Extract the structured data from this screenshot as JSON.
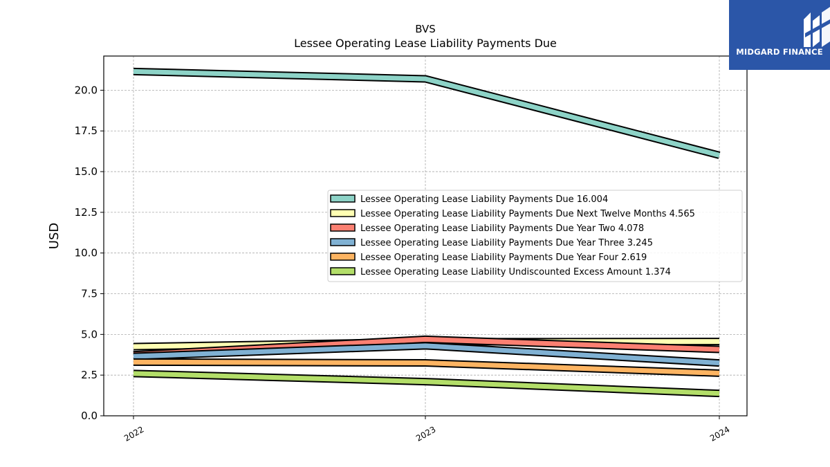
{
  "logo": {
    "name": "MIDGARD FINANCE",
    "icon": "midgard-m-logo-icon",
    "background": "#2b56a8"
  },
  "chart_data": {
    "type": "line",
    "title": "BVS",
    "subtitle": "Lessee Operating Lease Liability Payments Due",
    "xlabel": "",
    "ylabel": "USD",
    "categories": [
      "2022",
      "2023",
      "2024"
    ],
    "ylim": [
      0,
      22.1
    ],
    "yticks": [
      "0.0",
      "2.5",
      "5.0",
      "7.5",
      "10.0",
      "12.5",
      "15.0",
      "17.5",
      "20.0"
    ],
    "grid": true,
    "legend_position": "center-right",
    "series": [
      {
        "name": "Lessee Operating Lease Liability Payments Due",
        "latest": "16.004",
        "color": "#8dd3c7",
        "values": [
          21.15,
          20.7,
          16.004
        ]
      },
      {
        "name": "Lessee Operating Lease Liability Payments Due Next Twelve Months",
        "latest": "4.565",
        "color": "#ffffb3",
        "values": [
          4.25,
          4.55,
          4.565
        ]
      },
      {
        "name": "Lessee Operating Lease Liability Payments Due Year Two",
        "latest": "4.078",
        "color": "#fb8072",
        "values": [
          3.75,
          4.7,
          4.078
        ]
      },
      {
        "name": "Lessee Operating Lease Liability Payments Due Year Three",
        "latest": "3.245",
        "color": "#80b1d3",
        "values": [
          3.65,
          4.3,
          3.245
        ]
      },
      {
        "name": "Lessee Operating Lease Liability Payments Due Year Four",
        "latest": "2.619",
        "color": "#fdb462",
        "values": [
          3.3,
          3.25,
          2.619
        ]
      },
      {
        "name": "Lessee Operating Lease Liability Undiscounted Excess Amount",
        "latest": "1.374",
        "color": "#b3de69",
        "values": [
          2.6,
          2.1,
          1.374
        ]
      }
    ]
  }
}
